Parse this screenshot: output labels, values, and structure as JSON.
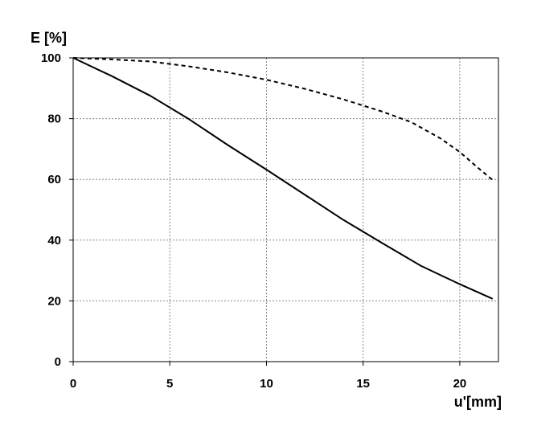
{
  "chart_data": {
    "type": "line",
    "title": "",
    "ylabel": "E [%]",
    "xlabel": "u'[mm]",
    "xlim": [
      0,
      22
    ],
    "ylim": [
      0,
      100
    ],
    "xticks": [
      0,
      5,
      10,
      15,
      20
    ],
    "yticks": [
      0,
      20,
      40,
      60,
      80,
      100
    ],
    "grid": true,
    "grid_style": "dotted",
    "series": [
      {
        "style": "solid",
        "color": "#000000",
        "x": [
          0,
          2,
          4,
          6,
          8,
          10,
          12,
          14,
          16,
          18,
          20,
          21.7
        ],
        "y": [
          100,
          94,
          87.5,
          79.8,
          71.3,
          63.2,
          54.9,
          46.6,
          39,
          31.5,
          25.5,
          20.7
        ]
      },
      {
        "style": "dashed",
        "color": "#000000",
        "x": [
          0,
          2,
          4,
          6,
          8,
          10,
          12,
          14,
          16,
          17.5,
          19,
          20,
          21,
          21.7
        ],
        "y": [
          100,
          99.5,
          98.8,
          97.2,
          95.2,
          92.8,
          89.8,
          86.3,
          82.3,
          78.8,
          73.5,
          69,
          63.5,
          59.8
        ]
      }
    ]
  }
}
